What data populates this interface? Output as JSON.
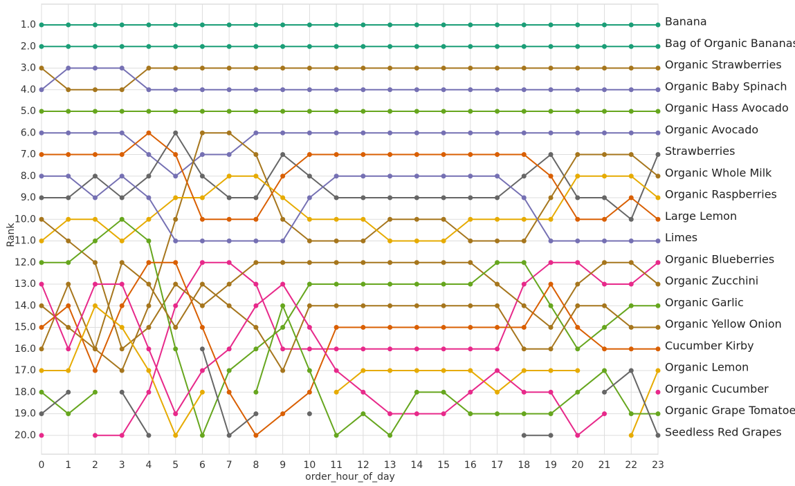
{
  "chart_data": {
    "type": "line",
    "x_label": "order_hour_of_day",
    "y_label": "Rank",
    "x": [
      0,
      1,
      2,
      3,
      4,
      5,
      6,
      7,
      8,
      9,
      10,
      11,
      12,
      13,
      14,
      15,
      16,
      17,
      18,
      19,
      20,
      21,
      22,
      23
    ],
    "xlim": [
      0,
      23
    ],
    "xticks": [
      0,
      1,
      2,
      3,
      4,
      5,
      6,
      7,
      8,
      9,
      10,
      11,
      12,
      13,
      14,
      15,
      16,
      17,
      18,
      19,
      20,
      21,
      22,
      23
    ],
    "ylim": [
      20.87,
      0.04
    ],
    "inverted_y": true,
    "grid": true,
    "yticks": [
      {
        "value": 1,
        "label": "1.0"
      },
      {
        "value": 2,
        "label": "2.0"
      },
      {
        "value": 3,
        "label": "3.0"
      },
      {
        "value": 4,
        "label": "4.0"
      },
      {
        "value": 5,
        "label": "5.0"
      },
      {
        "value": 6,
        "label": "6.0"
      },
      {
        "value": 7,
        "label": "7.0"
      },
      {
        "value": 8,
        "label": "8.0"
      },
      {
        "value": 9,
        "label": "9.0"
      },
      {
        "value": 10,
        "label": "10.0"
      },
      {
        "value": 11,
        "label": "11.0"
      },
      {
        "value": 12,
        "label": "12.0"
      },
      {
        "value": 13,
        "label": "13.0"
      },
      {
        "value": 14,
        "label": "14.0"
      },
      {
        "value": 15,
        "label": "15.0"
      },
      {
        "value": 16,
        "label": "16.0"
      },
      {
        "value": 17,
        "label": "17.0"
      },
      {
        "value": 18,
        "label": "18.0"
      },
      {
        "value": 19,
        "label": "19.0"
      },
      {
        "value": 20,
        "label": "20.0"
      }
    ],
    "series": [
      {
        "name": "Banana",
        "color": "#1b9e77",
        "values": [
          1,
          1,
          1,
          1,
          1,
          1,
          1,
          1,
          1,
          1,
          1,
          1,
          1,
          1,
          1,
          1,
          1,
          1,
          1,
          1,
          1,
          1,
          1,
          1
        ]
      },
      {
        "name": "Bag of Organic Bananas",
        "color": "#1b9e77",
        "values": [
          2,
          2,
          2,
          2,
          2,
          2,
          2,
          2,
          2,
          2,
          2,
          2,
          2,
          2,
          2,
          2,
          2,
          2,
          2,
          2,
          2,
          2,
          2,
          2
        ]
      },
      {
        "name": "Organic Strawberries",
        "color": "#a6761d",
        "values": [
          3,
          4,
          4,
          4,
          3,
          3,
          3,
          3,
          3,
          3,
          3,
          3,
          3,
          3,
          3,
          3,
          3,
          3,
          3,
          3,
          3,
          3,
          3,
          3
        ]
      },
      {
        "name": "Organic Baby Spinach",
        "color": "#7570b3",
        "values": [
          4,
          3,
          3,
          3,
          4,
          4,
          4,
          4,
          4,
          4,
          4,
          4,
          4,
          4,
          4,
          4,
          4,
          4,
          4,
          4,
          4,
          4,
          4,
          4
        ]
      },
      {
        "name": "Organic Hass Avocado",
        "color": "#66a61e",
        "values": [
          5,
          5,
          5,
          5,
          5,
          5,
          5,
          5,
          5,
          5,
          5,
          5,
          5,
          5,
          5,
          5,
          5,
          5,
          5,
          5,
          5,
          5,
          5,
          5
        ]
      },
      {
        "name": "Organic Avocado",
        "color": "#7570b3",
        "values": [
          6,
          6,
          6,
          6,
          7,
          8,
          7,
          7,
          6,
          6,
          6,
          6,
          6,
          6,
          6,
          6,
          6,
          6,
          6,
          6,
          6,
          6,
          6,
          6
        ]
      },
      {
        "name": "Strawberries",
        "color": "#666666",
        "values": [
          9,
          9,
          8,
          9,
          8,
          6,
          8,
          9,
          9,
          7,
          8,
          9,
          9,
          9,
          9,
          9,
          9,
          9,
          8,
          7,
          9,
          9,
          10,
          7
        ]
      },
      {
        "name": "Organic Whole Milk",
        "color": "#a6761d",
        "values": [
          14,
          15,
          16,
          17,
          14,
          10,
          6,
          6,
          7,
          10,
          11,
          11,
          11,
          10,
          10,
          10,
          11,
          11,
          11,
          9,
          7,
          7,
          7,
          8
        ]
      },
      {
        "name": "Organic Raspberries",
        "color": "#e6ab02",
        "values": [
          11,
          10,
          10,
          11,
          10,
          9,
          9,
          8,
          8,
          9,
          10,
          10,
          10,
          11,
          11,
          11,
          10,
          10,
          10,
          10,
          8,
          8,
          8,
          9
        ]
      },
      {
        "name": "Large Lemon",
        "color": "#d95f02",
        "values": [
          7,
          7,
          7,
          7,
          6,
          7,
          10,
          10,
          10,
          8,
          7,
          7,
          7,
          7,
          7,
          7,
          7,
          7,
          7,
          8,
          10,
          10,
          9,
          10
        ]
      },
      {
        "name": "Limes",
        "color": "#7570b3",
        "values": [
          8,
          8,
          9,
          8,
          9,
          11,
          11,
          11,
          11,
          11,
          9,
          8,
          8,
          8,
          8,
          8,
          8,
          8,
          9,
          11,
          11,
          11,
          11,
          11
        ]
      },
      {
        "name": "Organic Blueberries",
        "color": "#e7298a",
        "values": [
          20,
          null,
          20,
          20,
          18,
          14,
          12,
          12,
          13,
          16,
          16,
          16,
          16,
          16,
          16,
          16,
          16,
          16,
          13,
          12,
          12,
          13,
          13,
          12
        ]
      },
      {
        "name": "Organic Zucchini",
        "color": "#a6761d",
        "values": [
          10,
          11,
          12,
          16,
          15,
          13,
          14,
          13,
          12,
          12,
          12,
          12,
          12,
          12,
          12,
          12,
          12,
          13,
          14,
          15,
          13,
          12,
          12,
          13
        ]
      },
      {
        "name": "Organic Garlic",
        "color": "#66a61e",
        "values": [
          12,
          12,
          11,
          10,
          11,
          16,
          20,
          17,
          16,
          15,
          13,
          13,
          13,
          13,
          13,
          13,
          13,
          12,
          12,
          14,
          16,
          15,
          14,
          14
        ]
      },
      {
        "name": "Organic Yellow Onion",
        "color": "#a6761d",
        "values": [
          16,
          13,
          16,
          12,
          13,
          15,
          13,
          14,
          15,
          17,
          14,
          14,
          14,
          14,
          14,
          14,
          14,
          14,
          16,
          16,
          14,
          14,
          15,
          15
        ]
      },
      {
        "name": "Cucumber Kirby",
        "color": "#d95f02",
        "values": [
          15,
          14,
          17,
          14,
          12,
          12,
          15,
          18,
          20,
          19,
          18,
          15,
          15,
          15,
          15,
          15,
          15,
          15,
          15,
          13,
          15,
          16,
          16,
          16
        ]
      },
      {
        "name": "Organic Lemon",
        "color": "#e6ab02",
        "values": [
          17,
          17,
          14,
          15,
          17,
          20,
          18,
          null,
          null,
          null,
          null,
          18,
          17,
          17,
          17,
          17,
          17,
          18,
          17,
          17,
          17,
          null,
          20,
          17
        ]
      },
      {
        "name": "Organic Cucumber",
        "color": "#e7298a",
        "values": [
          13,
          16,
          13,
          13,
          16,
          19,
          17,
          16,
          14,
          13,
          15,
          17,
          18,
          19,
          19,
          19,
          18,
          17,
          18,
          18,
          20,
          19,
          null,
          18
        ]
      },
      {
        "name": "Organic Grape Tomatoes",
        "color": "#66a61e",
        "values": [
          18,
          19,
          18,
          null,
          null,
          null,
          null,
          null,
          18,
          14,
          17,
          20,
          19,
          20,
          18,
          18,
          19,
          19,
          19,
          19,
          18,
          17,
          19,
          19
        ]
      },
      {
        "name": "Seedless Red Grapes",
        "color": "#666666",
        "values": [
          19,
          18,
          null,
          18,
          20,
          null,
          16,
          20,
          19,
          null,
          19,
          null,
          null,
          null,
          null,
          null,
          null,
          null,
          20,
          20,
          null,
          18,
          17,
          20
        ]
      }
    ]
  }
}
